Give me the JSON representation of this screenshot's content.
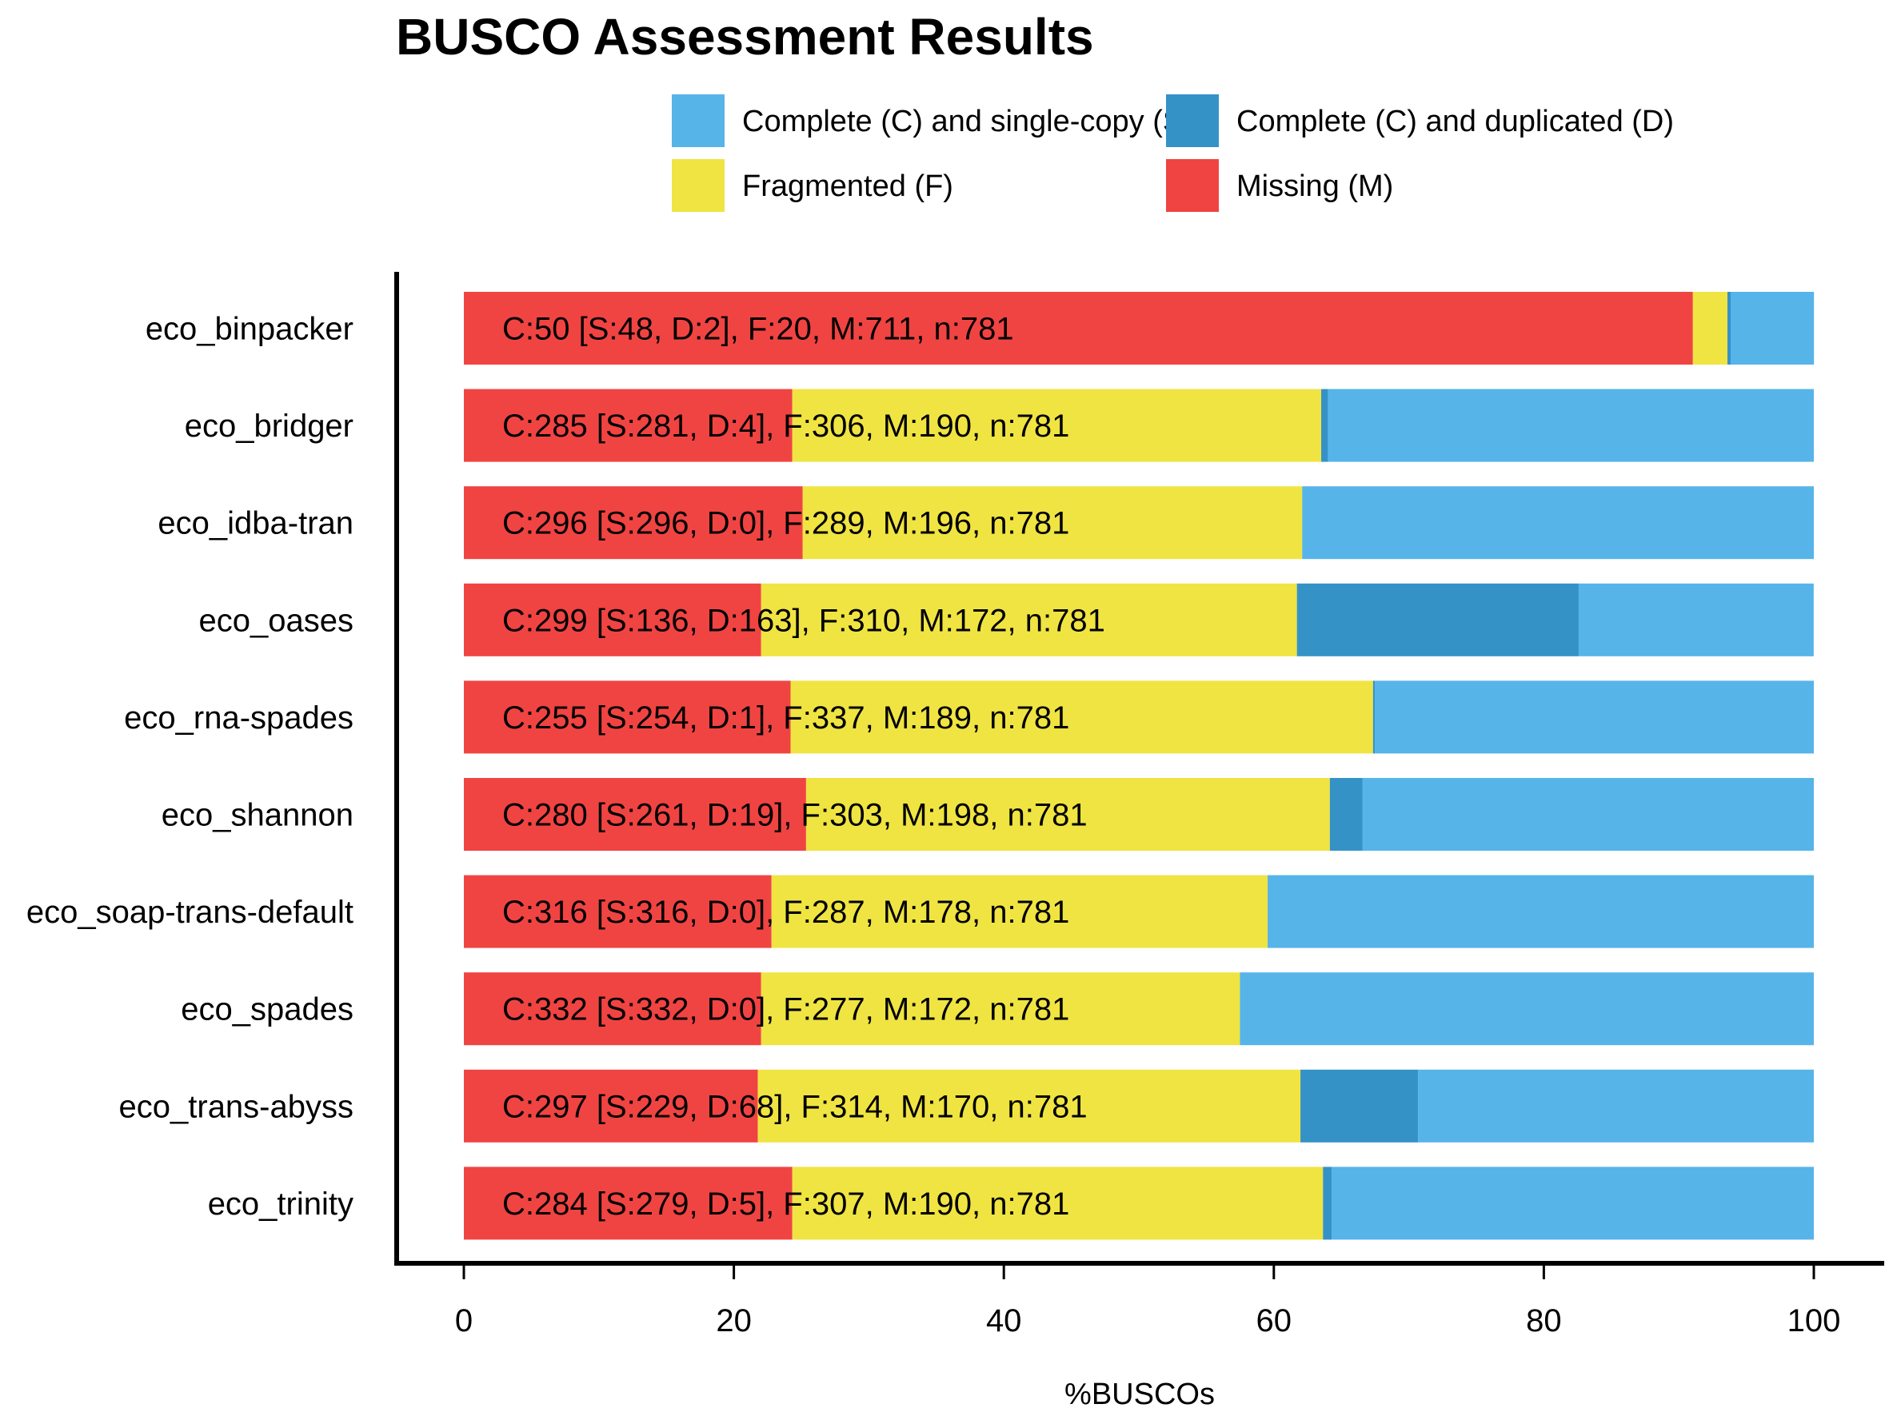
{
  "chart_data": {
    "type": "bar",
    "orientation": "horizontal",
    "stacked": true,
    "title": "BUSCO Assessment Results",
    "xlabel": "%BUSCOs",
    "ylabel": "",
    "xlim": [
      0,
      100
    ],
    "xticks": [
      "0",
      "20",
      "40",
      "60",
      "80",
      "100"
    ],
    "grid": false,
    "legend_position": "top",
    "categories": [
      "eco_binpacker",
      "eco_bridger",
      "eco_idba-tran",
      "eco_oases",
      "eco_rna-spades",
      "eco_shannon",
      "eco_soap-trans-default",
      "eco_spades",
      "eco_trans-abyss",
      "eco_trinity"
    ],
    "series": [
      {
        "name": "Complete (C) and single-copy (S)",
        "key": "S",
        "color": "#56B4E9",
        "values": [
          6.15,
          35.98,
          37.9,
          17.41,
          32.52,
          33.42,
          40.46,
          42.51,
          29.32,
          35.72
        ]
      },
      {
        "name": "Complete (C) and duplicated (D)",
        "key": "D",
        "color": "#3492C7",
        "values": [
          0.26,
          0.51,
          0.0,
          20.87,
          0.13,
          2.43,
          0.0,
          0.0,
          8.71,
          0.64
        ]
      },
      {
        "name": "Fragmented (F)",
        "key": "F",
        "color": "#F0E442",
        "values": [
          2.56,
          39.18,
          37.0,
          39.69,
          43.15,
          38.8,
          36.75,
          35.47,
          40.2,
          39.31
        ]
      },
      {
        "name": "Missing (M)",
        "key": "M",
        "color": "#F04442",
        "values": [
          91.04,
          24.33,
          25.1,
          22.02,
          24.2,
          25.35,
          22.79,
          22.02,
          21.77,
          24.33
        ]
      }
    ],
    "bar_labels": [
      "C:50 [S:48, D:2], F:20, M:711, n:781",
      "C:285 [S:281, D:4], F:306, M:190, n:781",
      "C:296 [S:296, D:0], F:289, M:196, n:781",
      "C:299 [S:136, D:163], F:310, M:172, n:781",
      "C:255 [S:254, D:1], F:337, M:189, n:781",
      "C:280 [S:261, D:19], F:303, M:198, n:781",
      "C:316 [S:316, D:0], F:287, M:178, n:781",
      "C:332 [S:332, D:0], F:277, M:172, n:781",
      "C:297 [S:229, D:68], F:314, M:170, n:781",
      "C:284 [S:279, D:5], F:307, M:190, n:781"
    ],
    "legend": [
      {
        "label": "Complete (C) and single-copy (S)",
        "color": "#56B4E9"
      },
      {
        "label": "Complete (C) and duplicated (D)",
        "color": "#3492C7"
      },
      {
        "label": "Fragmented (F)",
        "color": "#F0E442"
      },
      {
        "label": "Missing (M)",
        "color": "#F04442"
      }
    ]
  }
}
